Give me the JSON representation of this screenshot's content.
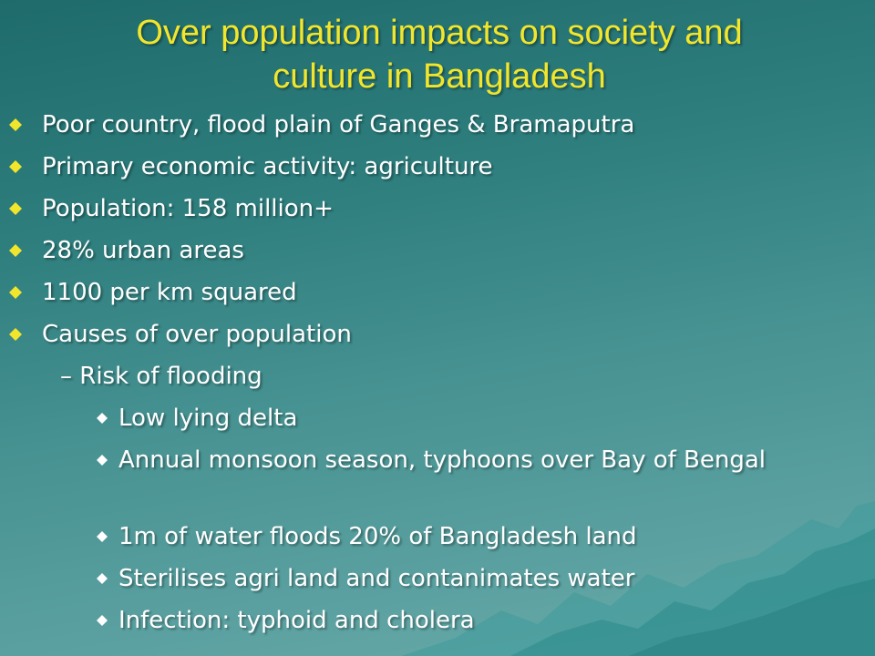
{
  "slide": {
    "title_line_1": "Over population impacts on society and",
    "title_line_2": "culture in Bangladesh",
    "colors": {
      "title": "#f2e62c",
      "text": "#ffffff",
      "bullet": "#f2e62c",
      "background": "#2e7e7e"
    },
    "bullets": [
      "Poor country, flood plain of Ganges & Bramaputra",
      "Primary economic activity: agriculture",
      "Population: 158 million+",
      "28% urban areas",
      "1100 per km squared",
      "Causes of over population"
    ],
    "sub_bullet": "– Risk of flooding",
    "sub_sub_bullets": [
      "Low lying delta",
      "Annual monsoon season, typhoons over Bay of Bengal",
      "1m of water floods 20% of Bangladesh land",
      "Sterilises agri land and contanimates water",
      "Infection: typhoid and cholera"
    ]
  }
}
